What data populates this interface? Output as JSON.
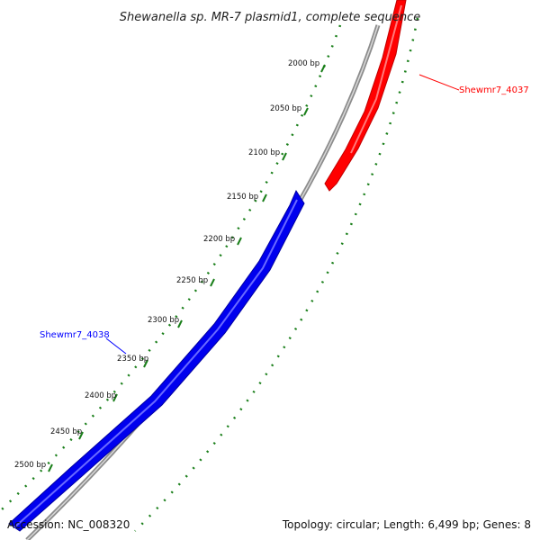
{
  "title": "Shewanella sp. MR-7 plasmid1, complete sequence",
  "accession": "Accession: NC_008320",
  "summary": "Topology: circular; Length: 6,499 bp; Genes: 8",
  "ticks": [
    "2000 bp",
    "2050 bp",
    "2100 bp",
    "2150 bp",
    "2200 bp",
    "2250 bp",
    "2300 bp",
    "2350 bp",
    "2400 bp",
    "2450 bp",
    "2500 bp"
  ],
  "genes": [
    {
      "name": "Shewmr7_4037",
      "strand": "forward",
      "color": "#ff0000"
    },
    {
      "name": "Shewmr7_4038",
      "strand": "reverse",
      "color": "#0000ff"
    }
  ],
  "colors": {
    "backbone": "#888888",
    "gc_skew": "#1a7f1a",
    "forward_gene": "#ff0000",
    "reverse_gene": "#0000ff"
  }
}
